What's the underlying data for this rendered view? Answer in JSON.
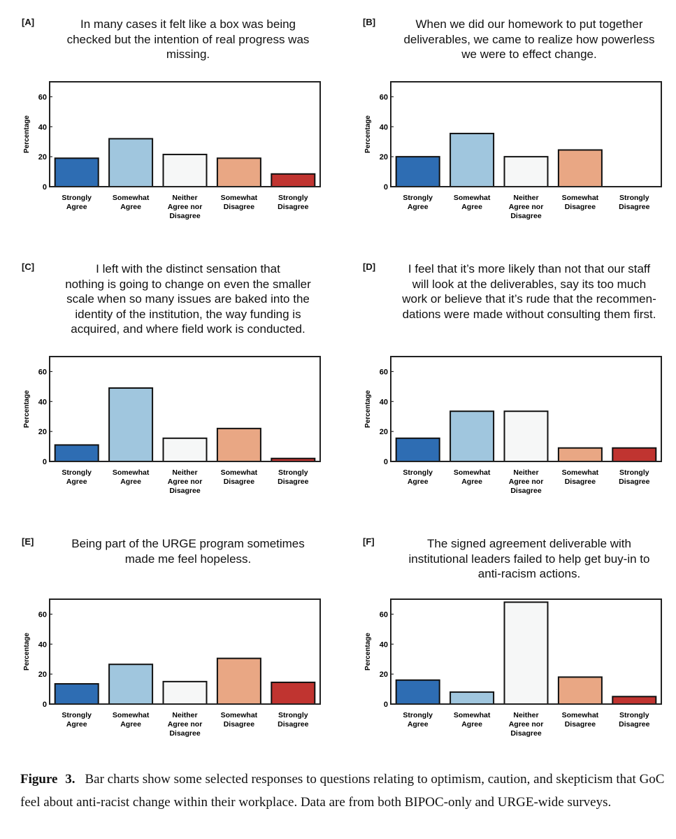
{
  "colors": {
    "strongly_agree": "#2e6db3",
    "somewhat_agree": "#a0c6de",
    "neither": "#f6f7f7",
    "somewhat_disagree": "#e9a784",
    "strongly_disagree": "#c03430",
    "axis": "#222222"
  },
  "caption": {
    "label": "Figure 3.",
    "text": "Bar charts show some selected responses to questions relating to optimism, caution, and skepticism that GoC feel about anti-racist change within their workplace. Data are from both BIPOC-only and URGE-wide surveys."
  },
  "chart_data": [
    {
      "type": "bar",
      "panel_label": "[A]",
      "title": "In many cases it felt like a box was being\nchecked but the intention of real progress was\nmissing.",
      "ylabel": "Percentage",
      "ylim": [
        0,
        70
      ],
      "yticks": [
        0,
        20,
        40,
        60
      ],
      "categories": [
        "Strongly\nAgree",
        "Somewhat\nAgree",
        "Neither\nAgree nor\nDisagree",
        "Somewhat\nDisagree",
        "Strongly\nDisagree"
      ],
      "values": [
        19,
        32,
        21.5,
        19,
        8.5
      ]
    },
    {
      "type": "bar",
      "panel_label": "[B]",
      "title": "When we did our homework to put together\ndeliverables, we came to realize how powerless\nwe were to effect change.",
      "ylabel": "Percentage",
      "ylim": [
        0,
        70
      ],
      "yticks": [
        0,
        20,
        40,
        60
      ],
      "categories": [
        "Strongly\nAgree",
        "Somewhat\nAgree",
        "Neither\nAgree nor\nDisagree",
        "Somewhat\nDisagree",
        "Strongly\nDisagree"
      ],
      "values": [
        20,
        35.5,
        20,
        24.5,
        0
      ]
    },
    {
      "type": "bar",
      "panel_label": "[C]",
      "title": "I left with the distinct sensation that\nnothing is going to change on even the smaller\nscale when so many issues are baked into the\nidentity of the institution, the way funding is\nacquired, and where field work is conducted.",
      "ylabel": "Percentage",
      "ylim": [
        0,
        70
      ],
      "yticks": [
        0,
        20,
        40,
        60
      ],
      "categories": [
        "Strongly\nAgree",
        "Somewhat\nAgree",
        "Neither\nAgree nor\nDisagree",
        "Somewhat\nDisagree",
        "Strongly\nDisagree"
      ],
      "values": [
        11,
        49,
        15.5,
        22,
        2
      ]
    },
    {
      "type": "bar",
      "panel_label": "[D]",
      "title": "I feel that it’s more likely than not that our staff\nwill look at the deliverables, say its too much\nwork or believe that it’s rude that the recommen-\ndations were made without consulting them first.",
      "ylabel": "Percentage",
      "ylim": [
        0,
        70
      ],
      "yticks": [
        0,
        20,
        40,
        60
      ],
      "categories": [
        "Strongly\nAgree",
        "Somewhat\nAgree",
        "Neither\nAgree nor\nDisagree",
        "Somewhat\nDisagree",
        "Strongly\nDisagree"
      ],
      "values": [
        15.5,
        33.5,
        33.5,
        9,
        9
      ]
    },
    {
      "type": "bar",
      "panel_label": "[E]",
      "title": "Being part of the URGE program sometimes\nmade me feel hopeless.",
      "ylabel": "Percentage",
      "ylim": [
        0,
        70
      ],
      "yticks": [
        0,
        20,
        40,
        60
      ],
      "categories": [
        "Strongly\nAgree",
        "Somewhat\nAgree",
        "Neither\nAgree nor\nDisagree",
        "Somewhat\nDisagree",
        "Strongly\nDisagree"
      ],
      "values": [
        13.5,
        26.5,
        15,
        30.5,
        14.5
      ]
    },
    {
      "type": "bar",
      "panel_label": "[F]",
      "title": "The signed agreement deliverable with\ninstitutional leaders failed to help get buy-in to\nanti-racism actions.",
      "ylabel": "Percentage",
      "ylim": [
        0,
        70
      ],
      "yticks": [
        0,
        20,
        40,
        60
      ],
      "categories": [
        "Strongly\nAgree",
        "Somewhat\nAgree",
        "Neither\nAgree nor\nDisagree",
        "Somewhat\nDisagree",
        "Strongly\nDisagree"
      ],
      "values": [
        16,
        8,
        68,
        18,
        5
      ]
    }
  ]
}
